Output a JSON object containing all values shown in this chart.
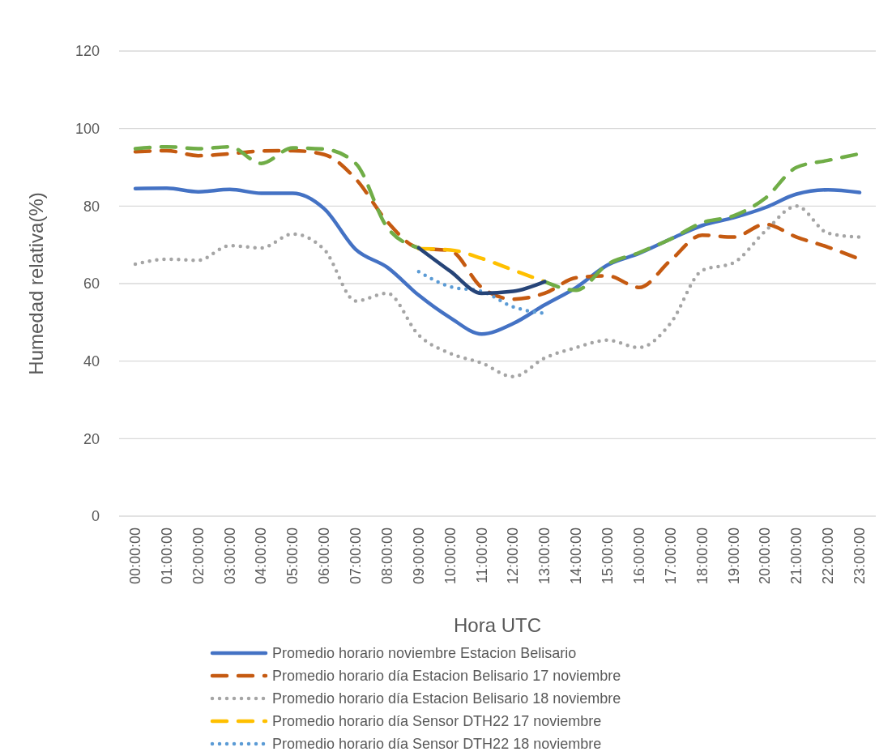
{
  "chart_data": {
    "type": "line",
    "xlabel": "Hora UTC",
    "ylabel": "Humedad relativa(%)",
    "categories": [
      "00:00:00",
      "01:00:00",
      "02:00:00",
      "03:00:00",
      "04:00:00",
      "05:00:00",
      "06:00:00",
      "07:00:00",
      "08:00:00",
      "09:00:00",
      "10:00:00",
      "11:00:00",
      "12:00:00",
      "13:00:00",
      "14:00:00",
      "15:00:00",
      "16:00:00",
      "17:00:00",
      "18:00:00",
      "19:00:00",
      "20:00:00",
      "21:00:00",
      "22:00:00",
      "23:00:00"
    ],
    "ylim": [
      0,
      120
    ],
    "yticks": [
      0,
      20,
      40,
      60,
      80,
      100,
      120
    ],
    "grid": "y",
    "legend": "bottom",
    "marker": "none",
    "series": [
      {
        "name": "Promedio horario noviembre Estacion Belisario",
        "color": "#4472c4",
        "line_style": "solid",
        "values": [
          84.5,
          84.6,
          83.7,
          84.3,
          83.3,
          83.3,
          79.3,
          68.8,
          64.2,
          57,
          51.2,
          47,
          49.7,
          54.5,
          59,
          64.8,
          67.8,
          71.5,
          75,
          77,
          79.6,
          83.1,
          84.2,
          83.5
        ]
      },
      {
        "name": "Promedio horario día Estacion Belisario 17 noviembre",
        "color": "#c55a11",
        "line_style": "dashed",
        "values": [
          94,
          94.3,
          93,
          93.5,
          94.2,
          94.3,
          93.3,
          87,
          76,
          69.2,
          68.5,
          59,
          56,
          57.5,
          61.5,
          62,
          59,
          66,
          72.5,
          72,
          75.3,
          72,
          69.4,
          66.3
        ]
      },
      {
        "name": "Promedio horario día Estacion Belisario 18 noviembre",
        "color": "#a5a5a5",
        "line_style": "dotted",
        "values": [
          65,
          66.3,
          66,
          69.8,
          69.2,
          72.8,
          68.8,
          55.5,
          57.5,
          46.7,
          42,
          39.5,
          36,
          40.8,
          43.5,
          45.4,
          43.5,
          49.8,
          63.4,
          65.4,
          73.5,
          80,
          73,
          72
        ]
      },
      {
        "name": "Promedio horario día Sensor DTH22 17 noviembre",
        "color": "#ffc000",
        "line_style": "dashed",
        "values": [
          null,
          null,
          null,
          null,
          null,
          null,
          null,
          null,
          null,
          69,
          68.7,
          66.5,
          63.5,
          60.5,
          null,
          null,
          null,
          null,
          null,
          null,
          null,
          null,
          null,
          null
        ]
      },
      {
        "name": "Promedio horario día Sensor DTH22 18 noviembre",
        "color": "#5b9bd5",
        "line_style": "dotted",
        "values": [
          null,
          null,
          null,
          null,
          null,
          null,
          null,
          null,
          null,
          63.1,
          59.2,
          58,
          54,
          52.3,
          null,
          null,
          null,
          null,
          null,
          null,
          null,
          null,
          null,
          null
        ]
      },
      {
        "color": "#70ad47",
        "line_style": "dashed",
        "values": [
          94.8,
          95.3,
          94.8,
          95.3,
          91,
          95,
          94.7,
          91,
          74.5,
          69.2,
          null,
          null,
          null,
          60.5,
          58.3,
          65,
          68,
          71.5,
          75.7,
          77.5,
          82,
          90,
          91.8,
          93.5
        ]
      },
      {
        "color": "#264478",
        "line_style": "solid",
        "values": [
          null,
          null,
          null,
          null,
          null,
          null,
          null,
          null,
          null,
          69.2,
          63.2,
          57.5,
          58,
          60.5,
          null,
          null,
          null,
          null,
          null,
          null,
          null,
          null,
          null,
          null
        ]
      }
    ]
  }
}
